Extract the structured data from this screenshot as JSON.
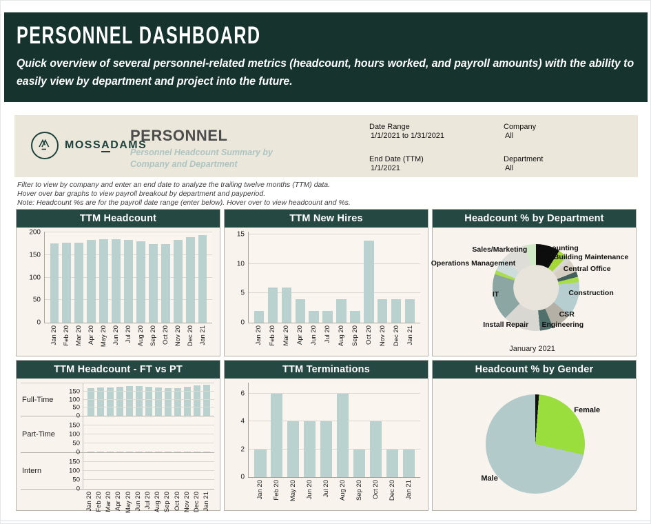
{
  "banner": {
    "title": "PERSONNEL DASHBOARD",
    "subtitle": "Quick overview of several personnel-related metrics (headcount, hours worked, and payroll amounts) with the ability to easily view by department and project into the future."
  },
  "report_header": {
    "logo": {
      "part1": "MOSS",
      "part2": "A",
      "part3": "DAMS"
    },
    "title": "PERSONNEL",
    "subtitle": "Personnel Headcount Summary by Company and Department",
    "filters": [
      {
        "label": "Date Range",
        "value": "1/1/2021 to 1/31/2021"
      },
      {
        "label": "Company",
        "value": "All"
      },
      {
        "label": "End Date (TTM)",
        "value": "1/1/2021"
      },
      {
        "label": "Department",
        "value": "All"
      }
    ]
  },
  "notes": [
    "Filter to view by company and enter an end date to analyze the trailing twelve months (TTM) data.",
    "Hover over bar graphs to view payroll breakout by department and payperiod.",
    "Note: Headcount %s are for the payroll date range (enter below). Hover over to view headcount and %s."
  ],
  "colors": {
    "banner_bg": "#16332d",
    "panel_header_bg": "#254842",
    "bar_fill": "#b9d2d0",
    "logo_teal": "#1d423c",
    "subtitle_teal": "#adc5c2",
    "gender_female": "#9ade3e",
    "gender_male": "#b2cbca"
  },
  "chart_data": [
    {
      "id": "ttm-headcount",
      "type": "bar",
      "title": "TTM Headcount",
      "categories": [
        "Jan 20",
        "Feb 20",
        "Mar 20",
        "Apr 20",
        "May 20",
        "Jun 20",
        "Jul 20",
        "Aug 20",
        "Sep 20",
        "Oct 20",
        "Nov 20",
        "Dec 20",
        "Jan 21"
      ],
      "values": [
        176,
        178,
        178,
        183,
        185,
        185,
        183,
        180,
        174,
        174,
        184,
        190,
        194
      ],
      "ylim": [
        0,
        202
      ],
      "yticks": [
        0,
        50,
        100,
        150,
        200
      ],
      "grid": true
    },
    {
      "id": "ttm-new-hires",
      "type": "bar",
      "title": "TTM New Hires",
      "categories": [
        "Jan 20",
        "Feb 20",
        "Mar 20",
        "Apr 20",
        "Jun 20",
        "Jul 20",
        "Aug 20",
        "Sep 20",
        "Oct 20",
        "Nov 20",
        "Dec 20",
        "Jan 21"
      ],
      "values": [
        2,
        6,
        6,
        4,
        2,
        2,
        4,
        2,
        14,
        4,
        4,
        4
      ],
      "ylim": [
        0,
        15.5
      ],
      "yticks": [
        0,
        5,
        10,
        15
      ],
      "grid": true
    },
    {
      "id": "dept-donut",
      "type": "pie",
      "title": "Headcount % by Department",
      "caption": "January 2021",
      "hole": true,
      "segments": [
        {
          "label": "Accounting",
          "value": 9,
          "color": "#0d0d0d"
        },
        {
          "label": "Building Maintenance",
          "value": 3.5,
          "color": "#a4d733"
        },
        {
          "label": "",
          "value": 2,
          "color": "#d8d7d1"
        },
        {
          "label": "Central Office",
          "value": 4.5,
          "color": "#d5cec1"
        },
        {
          "label": "",
          "value": 2,
          "color": "#44605c"
        },
        {
          "label": "",
          "value": 2,
          "color": "#a9dd4b"
        },
        {
          "label": "Construction",
          "value": 13,
          "color": "#b7ced0"
        },
        {
          "label": "CSR",
          "value": 7.5,
          "color": "#b4b0a5"
        },
        {
          "label": "Engineering",
          "value": 5,
          "color": "#50706c"
        },
        {
          "label": "Install Repair",
          "value": 14,
          "color": "#d8d7d1"
        },
        {
          "label": "IT",
          "value": 17.5,
          "color": "#8ba6a3"
        },
        {
          "label": "",
          "value": 1.5,
          "color": "#a9dd4b"
        },
        {
          "label": "Operations Management",
          "value": 5,
          "color": "#cddddb"
        },
        {
          "label": "Sales/Marketing",
          "value": 9.5,
          "color": "#deddd7"
        },
        {
          "label": "",
          "value": 4,
          "color": "#d2e9c8"
        }
      ],
      "labels": [
        {
          "text": "Accounting",
          "x": 62,
          "y": 16
        },
        {
          "text": "Building Maintenance",
          "x": 78,
          "y": 23
        },
        {
          "text": "Central Office",
          "x": 76,
          "y": 32
        },
        {
          "text": "Construction",
          "x": 78,
          "y": 51
        },
        {
          "text": "CSR",
          "x": 66,
          "y": 68
        },
        {
          "text": "Engineering",
          "x": 64,
          "y": 76
        },
        {
          "text": "Install Repair",
          "x": 36,
          "y": 76
        },
        {
          "text": "IT",
          "x": 31,
          "y": 52
        },
        {
          "text": "Operations Management",
          "x": 20,
          "y": 28
        },
        {
          "text": "Sales/Marketing",
          "x": 33,
          "y": 17
        }
      ]
    },
    {
      "id": "ft-vs-pt",
      "type": "multiples",
      "title": "TTM Headcount - FT vs PT",
      "categories": [
        "Jan 20",
        "Feb 20",
        "Mar 20",
        "Apr 20",
        "May 20",
        "Jun 20",
        "Jul 20",
        "Aug 20",
        "Sep 20",
        "Oct 20",
        "Nov 20",
        "Dec 20",
        "Jan 21"
      ],
      "series": [
        {
          "name": "Full-Time",
          "values": [
            172,
            174,
            174,
            179,
            181,
            181,
            179,
            176,
            170,
            170,
            180,
            186,
            190
          ]
        },
        {
          "name": "Part-Time",
          "values": [
            3,
            3,
            3,
            3,
            3,
            3,
            3,
            3,
            3,
            3,
            3,
            3,
            3
          ]
        },
        {
          "name": "Intern",
          "values": [
            0,
            0,
            0,
            0,
            0,
            0,
            0,
            0,
            0,
            0,
            0,
            0,
            0
          ]
        }
      ],
      "ylim": [
        0,
        200
      ],
      "yticks": [
        0,
        50,
        100,
        150
      ],
      "grid": true
    },
    {
      "id": "ttm-terminations",
      "type": "bar",
      "title": "TTM Terminations",
      "categories": [
        "Jan 20",
        "Feb 20",
        "May 20",
        "Jun 20",
        "Jul 20",
        "Aug 20",
        "Sep 20",
        "Oct 20",
        "Dec 20",
        "Jan 21"
      ],
      "values": [
        2,
        6,
        4,
        4,
        4,
        6,
        2,
        4,
        2,
        2
      ],
      "ylim": [
        0,
        6.8
      ],
      "yticks": [
        0,
        2,
        4,
        6
      ],
      "grid": true
    },
    {
      "id": "gender-pie",
      "type": "pie",
      "title": "Headcount % by Gender",
      "hole": false,
      "segments": [
        {
          "label": "",
          "value": 1.2,
          "color": "#111111"
        },
        {
          "label": "Female",
          "value": 27.3,
          "color": "#9ade3e"
        },
        {
          "label": "Male",
          "value": 71.5,
          "color": "#b2cbca"
        }
      ],
      "labels": [
        {
          "text": "Female",
          "x": 76,
          "y": 24
        },
        {
          "text": "Male",
          "x": 28,
          "y": 76
        }
      ]
    }
  ]
}
